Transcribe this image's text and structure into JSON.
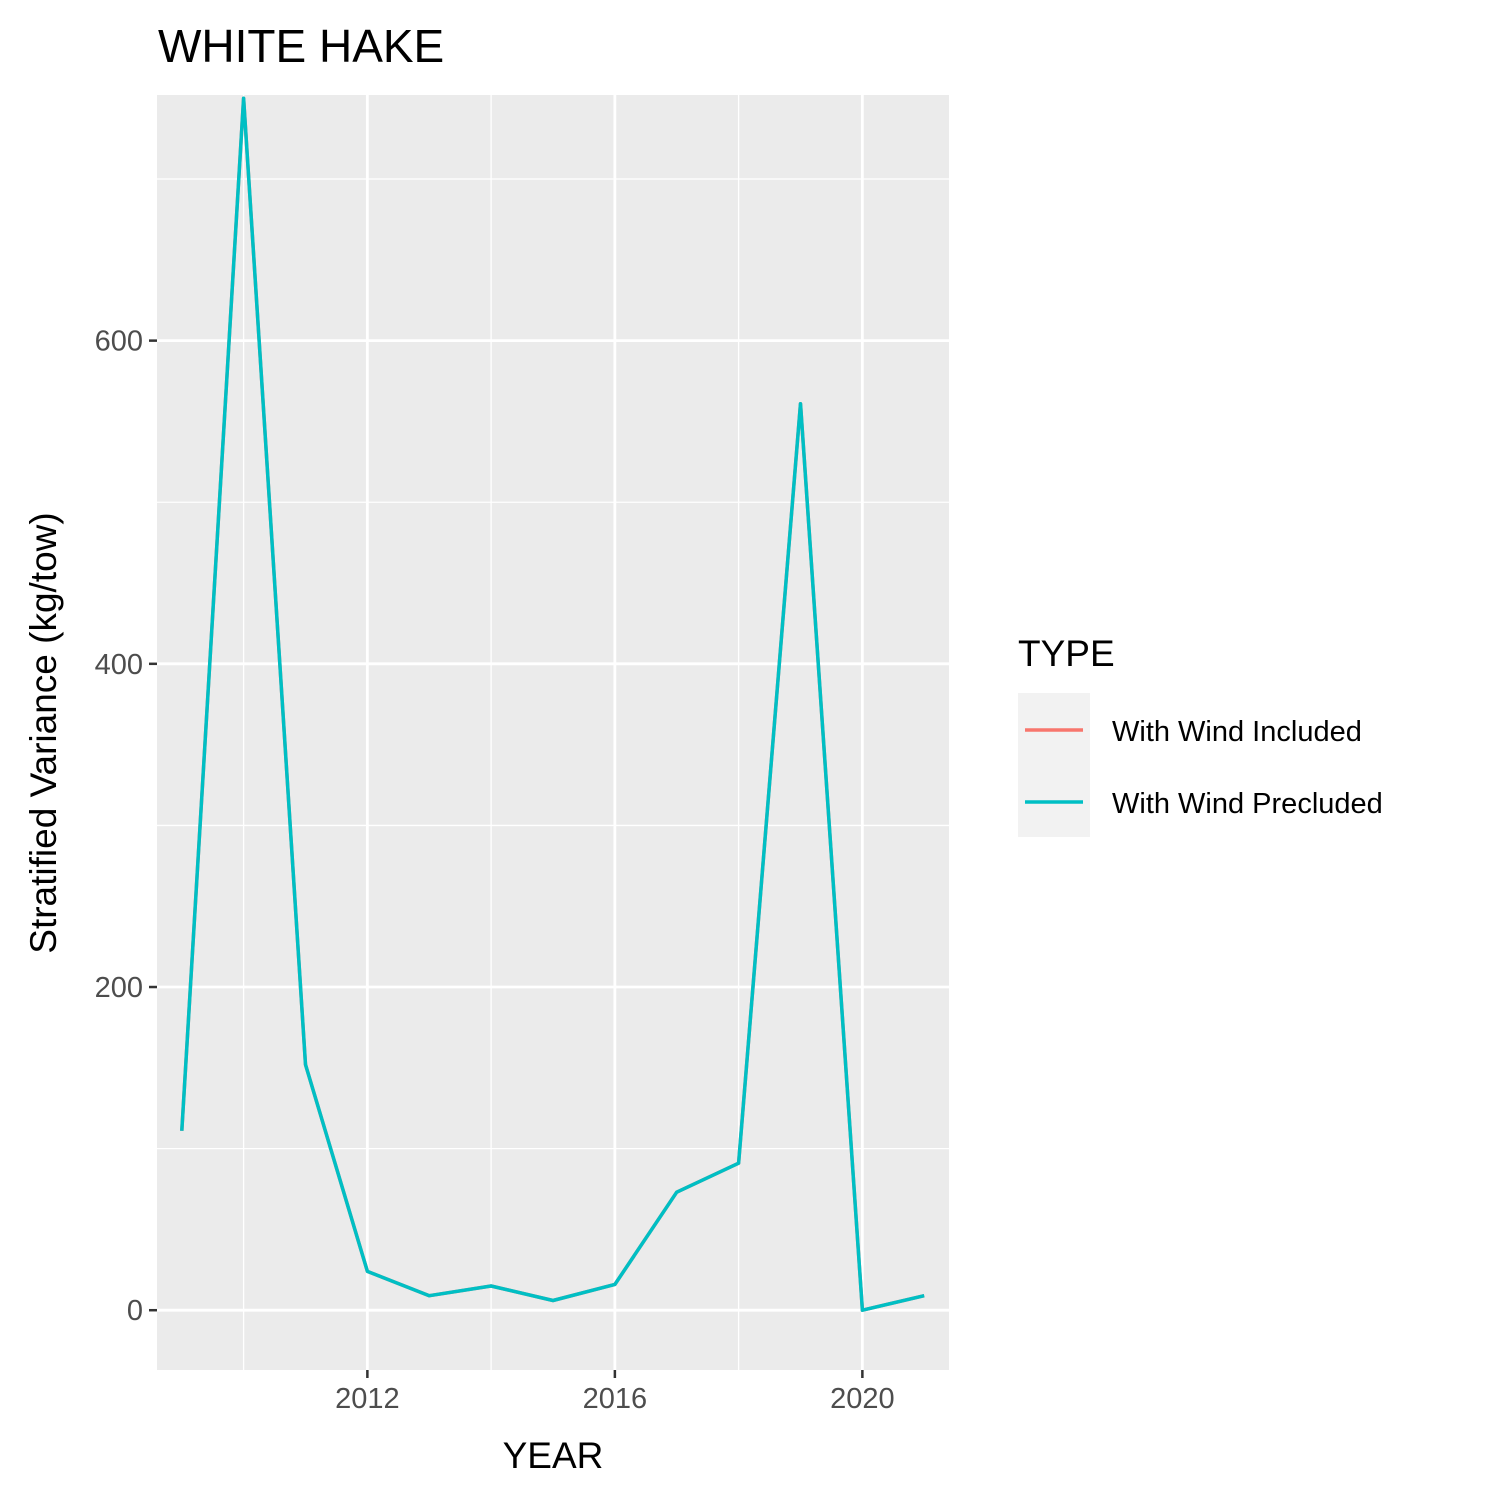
{
  "chart_data": {
    "type": "line",
    "title": "WHITE HAKE",
    "xlabel": "YEAR",
    "ylabel": "Stratified Variance (kg/tow)",
    "xlim": [
      2008.6,
      2021.4
    ],
    "ylim": [
      -37,
      752
    ],
    "x_ticks": [
      2012,
      2016,
      2020
    ],
    "x_minor_ticks": [
      2010,
      2014,
      2018
    ],
    "y_ticks": [
      0,
      200,
      400,
      600
    ],
    "y_minor_ticks": [
      100,
      300,
      500,
      700
    ],
    "grid": true,
    "legend": {
      "title": "TYPE",
      "placement": "right"
    },
    "series": [
      {
        "name": "With Wind Included",
        "color": "#F8766D",
        "x": [
          2009,
          2010,
          2011,
          2012,
          2013,
          2014,
          2015,
          2016,
          2017,
          2018,
          2019,
          2020,
          2021
        ],
        "values": [
          111,
          750,
          152,
          24,
          9,
          15,
          6,
          16,
          73,
          91,
          561,
          0,
          9
        ]
      },
      {
        "name": "With Wind Precluded",
        "color": "#00BFC4",
        "x": [
          2009,
          2010,
          2011,
          2012,
          2013,
          2014,
          2015,
          2016,
          2017,
          2018,
          2019,
          2020,
          2021
        ],
        "values": [
          111,
          750,
          152,
          24,
          9,
          15,
          6,
          16,
          73,
          91,
          561,
          0,
          9
        ]
      }
    ]
  }
}
